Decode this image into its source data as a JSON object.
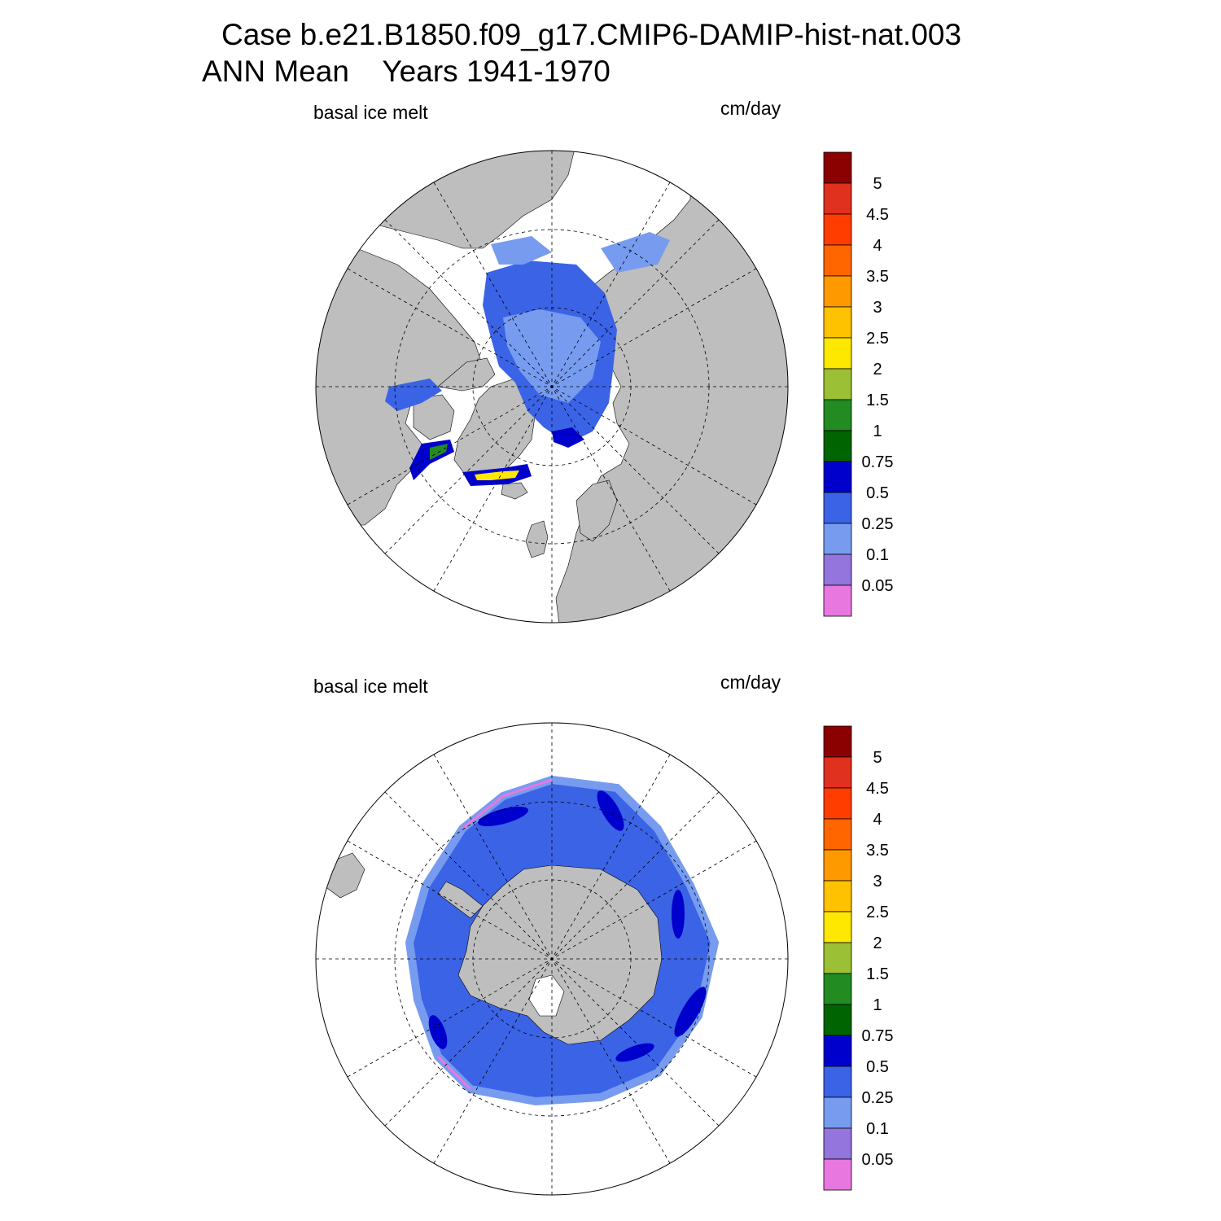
{
  "header": {
    "line1": "Case b.e21.B1850.f09_g17.CMIP6-DAMIP-hist-nat.003",
    "line2": "ANN Mean    Years 1941-1970"
  },
  "panels": [
    {
      "hemisphere": "north",
      "left_label": "basal ice melt",
      "right_label": "cm/day"
    },
    {
      "hemisphere": "south",
      "left_label": "basal ice melt",
      "right_label": "cm/day"
    }
  ],
  "colorbar": {
    "tick_labels": [
      "5",
      "4.5",
      "4",
      "3.5",
      "3",
      "2.5",
      "2",
      "1.5",
      "1",
      "0.75",
      "0.5",
      "0.25",
      "0.1",
      "0.05"
    ],
    "colors_top_to_bottom": [
      "#8b0000",
      "#e0301e",
      "#ff3d00",
      "#ff6600",
      "#ff9900",
      "#ffc200",
      "#ffe800",
      "#9bbf35",
      "#228b22",
      "#006400",
      "#0000cd",
      "#3b63e6",
      "#779cef",
      "#9474dd",
      "#e878df"
    ]
  },
  "style": {
    "land": "#bebebe",
    "ocean": "#ffffff",
    "grid": "#000000"
  }
}
